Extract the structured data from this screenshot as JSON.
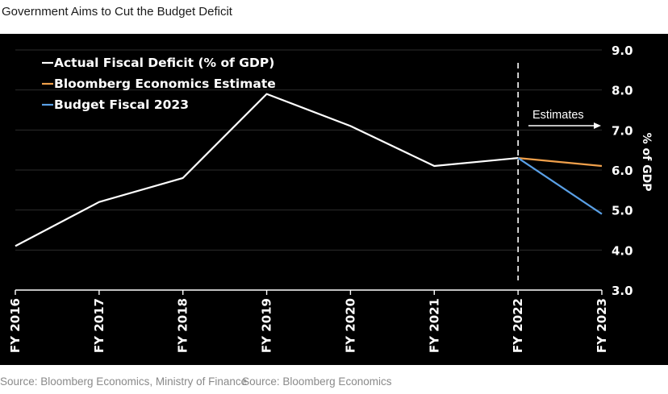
{
  "title": "Government Aims to Cut the Budget Deficit",
  "source_1": "Source: Bloomberg Economics, Ministry of Finance",
  "source_2": "Source: Bloomberg Economics",
  "annotation": {
    "estimates_label": "Estimates"
  },
  "colors": {
    "actual": "#ffffff",
    "bloomberg": "#f0a04b",
    "budget": "#5aa0e6",
    "background": "#000000"
  },
  "chart_data": {
    "type": "line",
    "title": "",
    "xlabel": "",
    "ylabel": "% of GDP",
    "ylim": [
      3.0,
      9.0
    ],
    "yticks": [
      "3.0",
      "4.0",
      "5.0",
      "6.0",
      "7.0",
      "8.0",
      "9.0"
    ],
    "categories": [
      "FY 2016",
      "FY 2017",
      "FY 2018",
      "FY 2019",
      "FY 2020",
      "FY 2021",
      "FY 2022",
      "FY 2023"
    ],
    "estimates_from": "FY 2022",
    "legend_position": "top-left",
    "series": [
      {
        "name": "Actual  Fiscal Deficit (% of GDP)",
        "color": "#ffffff",
        "values": [
          4.1,
          5.2,
          5.8,
          7.9,
          7.1,
          6.1,
          6.3,
          null
        ]
      },
      {
        "name": "Bloomberg Economics Estimate",
        "color": "#f0a04b",
        "values": [
          null,
          null,
          null,
          null,
          null,
          null,
          6.3,
          6.1
        ]
      },
      {
        "name": "Budget Fiscal 2023",
        "color": "#5aa0e6",
        "values": [
          null,
          null,
          null,
          null,
          null,
          null,
          6.3,
          4.9
        ]
      }
    ]
  }
}
